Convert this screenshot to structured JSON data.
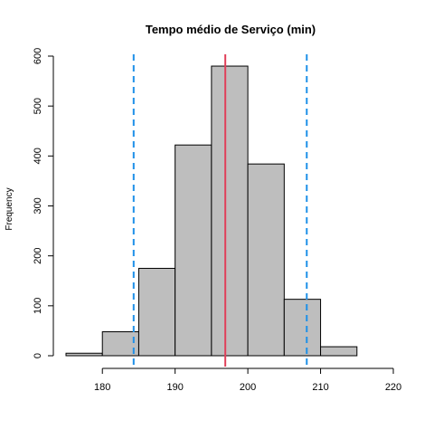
{
  "chart_data": {
    "type": "histogram",
    "title": "Tempo médio de Serviço (min)",
    "xlabel": "",
    "ylabel": "Frequency",
    "xlim": [
      175,
      220
    ],
    "ylim": [
      0,
      600
    ],
    "x_ticks": [
      180,
      190,
      200,
      210,
      220
    ],
    "y_ticks": [
      0,
      100,
      200,
      300,
      400,
      500,
      600
    ],
    "bins": [
      {
        "from": 175,
        "to": 180,
        "count": 5
      },
      {
        "from": 180,
        "to": 185,
        "count": 48
      },
      {
        "from": 185,
        "to": 190,
        "count": 175
      },
      {
        "from": 190,
        "to": 195,
        "count": 422
      },
      {
        "from": 195,
        "to": 200,
        "count": 580
      },
      {
        "from": 200,
        "to": 205,
        "count": 384
      },
      {
        "from": 205,
        "to": 210,
        "count": 113
      },
      {
        "from": 210,
        "to": 215,
        "count": 18
      }
    ],
    "bar_color": "#BEBEBE",
    "bar_border_color": "#000000",
    "vlines": [
      {
        "x": 184.3,
        "style": "dashed",
        "color": "#1E90E8"
      },
      {
        "x": 196.9,
        "style": "solid",
        "color": "#E0405A"
      },
      {
        "x": 208.1,
        "style": "dashed",
        "color": "#1E90E8"
      }
    ],
    "grid": false,
    "legend": "none"
  }
}
